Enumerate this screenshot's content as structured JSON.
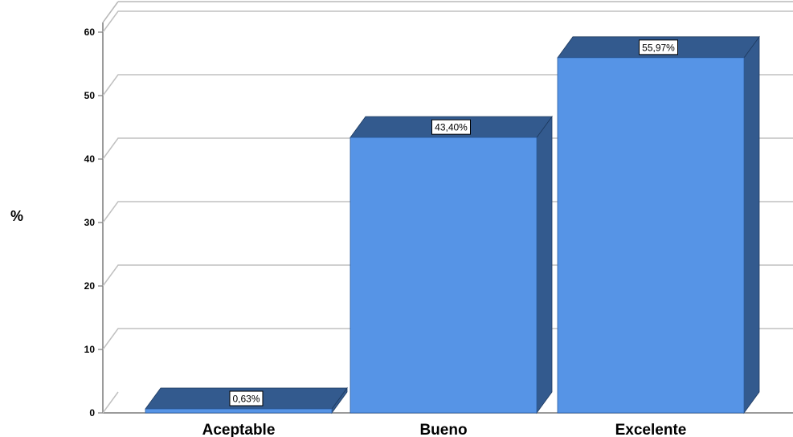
{
  "chart_data": {
    "type": "bar",
    "categories": [
      "Aceptable",
      "Bueno",
      "Excelente"
    ],
    "values": [
      0.63,
      43.4,
      55.97
    ],
    "data_labels": [
      "0,63%",
      "43,40%",
      "55,97%"
    ],
    "title": "",
    "xlabel": "",
    "ylabel": "%",
    "ylim": [
      0,
      60
    ],
    "yticks": [
      0,
      10,
      20,
      30,
      40,
      50,
      60
    ],
    "grid": true,
    "style": "3d",
    "colors": {
      "front": "#5694e6",
      "top": "#335a8e",
      "side": "#335a8e"
    }
  }
}
